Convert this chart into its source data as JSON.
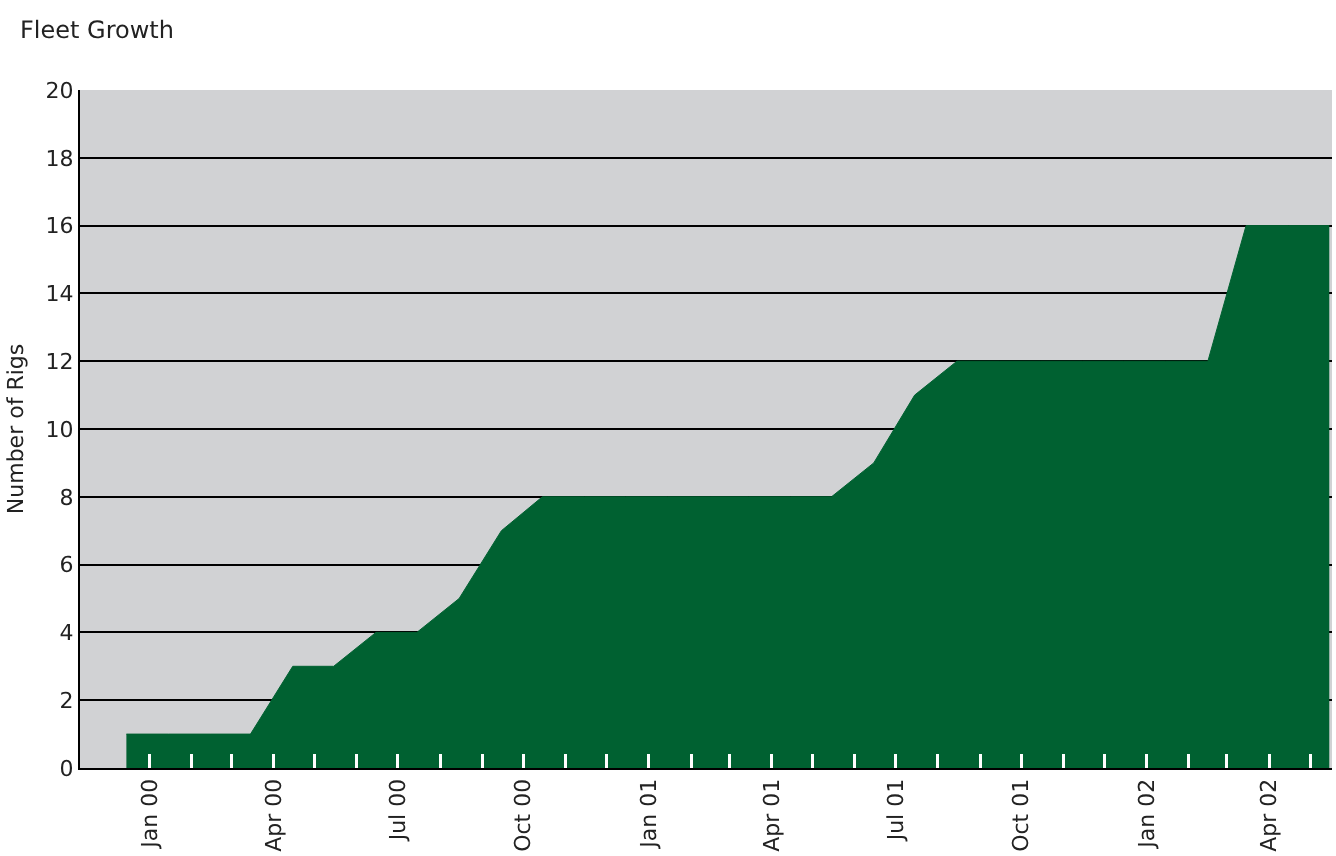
{
  "chart_data": {
    "type": "area",
    "title": "Fleet Growth",
    "ylabel": "Number of Rigs",
    "x": [
      "1999-12-15",
      "2000-01-15",
      "2000-02-15",
      "2000-03-15",
      "2000-04-15",
      "2000-05-15",
      "2000-06-15",
      "2000-07-15",
      "2000-08-15",
      "2000-09-15",
      "2000-10-15",
      "2000-11-15",
      "2000-12-15",
      "2001-01-15",
      "2001-02-15",
      "2001-03-15",
      "2001-04-15",
      "2001-05-15",
      "2001-06-15",
      "2001-07-15",
      "2001-08-15",
      "2001-09-15",
      "2001-10-15",
      "2001-11-15",
      "2001-12-15",
      "2002-01-15",
      "2002-02-15",
      "2002-03-15",
      "2002-04-15",
      "2002-05-15"
    ],
    "series": [
      {
        "color": "#006131",
        "values": [
          1,
          1,
          1,
          1,
          3,
          3,
          4,
          4,
          5,
          7,
          8,
          8,
          8,
          8,
          8,
          8,
          8,
          8,
          9,
          11,
          12,
          12,
          12,
          12,
          12,
          12,
          12,
          16,
          16,
          16
        ]
      }
    ],
    "xlim": [
      "1999-11-11",
      "2002-05-17"
    ],
    "xticks": [
      {
        "value": "2000-01-01",
        "label": "Jan 00"
      },
      {
        "value": "2000-02-01",
        "label": null
      },
      {
        "value": "2000-03-01",
        "label": null
      },
      {
        "value": "2000-04-01",
        "label": "Apr 00"
      },
      {
        "value": "2000-05-01",
        "label": null
      },
      {
        "value": "2000-06-01",
        "label": null
      },
      {
        "value": "2000-07-01",
        "label": "Jul 00"
      },
      {
        "value": "2000-08-01",
        "label": null
      },
      {
        "value": "2000-09-01",
        "label": null
      },
      {
        "value": "2000-10-01",
        "label": "Oct 00"
      },
      {
        "value": "2000-11-01",
        "label": null
      },
      {
        "value": "2000-12-01",
        "label": null
      },
      {
        "value": "2001-01-01",
        "label": "Jan 01"
      },
      {
        "value": "2001-02-01",
        "label": null
      },
      {
        "value": "2001-03-01",
        "label": null
      },
      {
        "value": "2001-04-01",
        "label": "Apr 01"
      },
      {
        "value": "2001-05-01",
        "label": null
      },
      {
        "value": "2001-06-01",
        "label": null
      },
      {
        "value": "2001-07-01",
        "label": "Jul 01"
      },
      {
        "value": "2001-08-01",
        "label": null
      },
      {
        "value": "2001-09-01",
        "label": null
      },
      {
        "value": "2001-10-01",
        "label": "Oct 01"
      },
      {
        "value": "2001-11-01",
        "label": null
      },
      {
        "value": "2001-12-01",
        "label": null
      },
      {
        "value": "2002-01-01",
        "label": "Jan 02"
      },
      {
        "value": "2002-02-01",
        "label": null
      },
      {
        "value": "2002-03-01",
        "label": null
      },
      {
        "value": "2002-04-01",
        "label": "Apr 02"
      },
      {
        "value": "2002-05-01",
        "label": null
      }
    ],
    "ylim": [
      0,
      20
    ],
    "yticks": [
      0,
      2,
      4,
      6,
      8,
      10,
      12,
      14,
      16,
      18,
      20
    ],
    "grid": "y"
  }
}
